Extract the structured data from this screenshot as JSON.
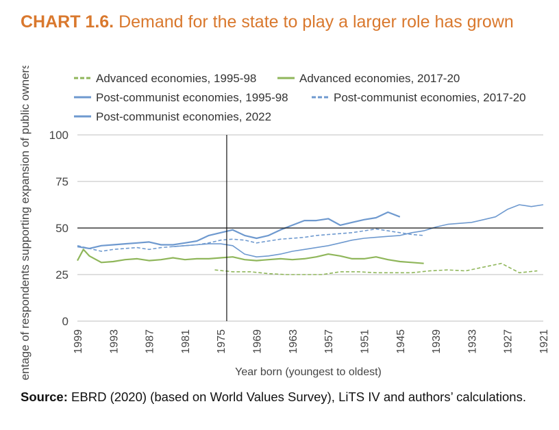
{
  "header": {
    "label": "CHART 1.6.",
    "title": "Demand for the state to play a larger role has grown"
  },
  "footer": {
    "source_label": "Source:",
    "source_text": "EBRD (2020) (based on World Values Survey), LiTS IV and authors’ calculations."
  },
  "colors": {
    "advanced": "#8fb65a",
    "postcommunist": "#6e99cf",
    "title": "#d9782d",
    "grid": "#bfbfbf"
  },
  "chart_data": {
    "type": "line",
    "title": "Demand for the state to play a larger role has grown",
    "xlabel": "Year born (youngest to oldest)",
    "ylabel": "Percentage of respondents supporting expansion of public ownership",
    "ylim": [
      0,
      100
    ],
    "yticks": [
      0,
      25,
      50,
      75,
      100
    ],
    "xlim": [
      1999,
      1921
    ],
    "x_reversed": true,
    "xticks": [
      1999,
      1993,
      1987,
      1981,
      1975,
      1969,
      1963,
      1957,
      1951,
      1945,
      1939,
      1933,
      1927,
      1921
    ],
    "reference_lines": {
      "x": 1974,
      "y": 50
    },
    "grid": "horizontal",
    "legend_position": "top",
    "series": [
      {
        "name": "Advanced economies, 1995-98",
        "style": "dashed",
        "color": "advanced",
        "x": [
          1976,
          1973,
          1970,
          1967,
          1964,
          1961,
          1958,
          1955,
          1952,
          1949,
          1946,
          1943,
          1940,
          1937,
          1934,
          1931,
          1928,
          1925,
          1922
        ],
        "y": [
          27.5,
          26.5,
          26.5,
          25.5,
          25,
          25,
          25,
          26.5,
          26.5,
          26,
          26,
          26,
          27,
          27.5,
          27,
          29,
          31,
          26,
          27
        ]
      },
      {
        "name": "Advanced economies, 2017-20",
        "style": "solid",
        "color": "advanced",
        "x": [
          1999,
          1998,
          1997,
          1995,
          1993,
          1991,
          1989,
          1987,
          1985,
          1983,
          1981,
          1979,
          1977,
          1975,
          1973,
          1971,
          1969,
          1967,
          1965,
          1963,
          1961,
          1959,
          1957,
          1955,
          1953,
          1951,
          1949,
          1947,
          1945,
          1943,
          1941
        ],
        "y": [
          32.5,
          38.5,
          35,
          31.5,
          32,
          33,
          33.5,
          32.5,
          33,
          34,
          33,
          33.5,
          33.5,
          34,
          34.5,
          33,
          32.5,
          33,
          33.5,
          33,
          33.5,
          34.5,
          36,
          35,
          33.5,
          33.5,
          34.5,
          33,
          32,
          31.5,
          31
        ]
      },
      {
        "name": "Post-communist economies, 1995-98",
        "style": "solid",
        "color": "postcommunist",
        "x": [
          1999,
          1997,
          1995,
          1993,
          1991,
          1989,
          1987,
          1985,
          1983,
          1981,
          1979,
          1977,
          1975,
          1973,
          1971,
          1969,
          1967,
          1965,
          1963,
          1961,
          1959,
          1957,
          1955,
          1953,
          1951,
          1949,
          1947,
          1945
        ],
        "y": [
          40,
          39,
          40.5,
          41,
          41.5,
          42,
          42.5,
          41,
          41,
          42,
          43,
          46,
          47.5,
          49,
          46,
          44.5,
          46,
          49,
          51.5,
          54,
          54,
          55,
          51.5,
          53,
          54.5,
          55.5,
          58.5,
          56
        ]
      },
      {
        "name": "Post-communist economies, 2017-20",
        "style": "dashed",
        "color": "postcommunist",
        "x": [
          1999,
          1997,
          1995,
          1993,
          1991,
          1989,
          1987,
          1985,
          1983,
          1981,
          1979,
          1977,
          1975,
          1973,
          1971,
          1969,
          1967,
          1965,
          1963,
          1961,
          1959,
          1957,
          1955,
          1953,
          1951,
          1949,
          1947,
          1945,
          1943,
          1941
        ],
        "y": [
          40.5,
          39,
          37.5,
          38.5,
          39,
          39.5,
          38.5,
          39.5,
          40,
          40.5,
          41,
          42,
          43.5,
          44,
          43.5,
          42,
          43,
          44,
          44.5,
          45,
          46,
          46.5,
          47,
          47.5,
          48.5,
          49.5,
          48.5,
          47.5,
          46.5,
          46
        ]
      },
      {
        "name": "Post-communist economies, 2022",
        "style": "solid",
        "color": "postcommunist",
        "stroke_light": true,
        "x": [
          1983,
          1981,
          1979,
          1977,
          1975,
          1973,
          1971,
          1969,
          1967,
          1965,
          1963,
          1961,
          1959,
          1957,
          1955,
          1953,
          1951,
          1949,
          1947,
          1945,
          1943,
          1941,
          1939,
          1937,
          1935,
          1933,
          1931,
          1929,
          1927,
          1925,
          1923,
          1921
        ],
        "y": [
          40,
          40.5,
          41,
          41.5,
          41.5,
          40.5,
          36,
          34.5,
          35,
          36,
          37.5,
          38.5,
          39.5,
          40.5,
          42,
          43.5,
          44.5,
          45,
          45.5,
          46,
          47.5,
          48.5,
          50.5,
          52,
          52.5,
          53,
          54.5,
          56,
          60,
          62.5,
          61.5,
          62.5
        ]
      }
    ]
  }
}
